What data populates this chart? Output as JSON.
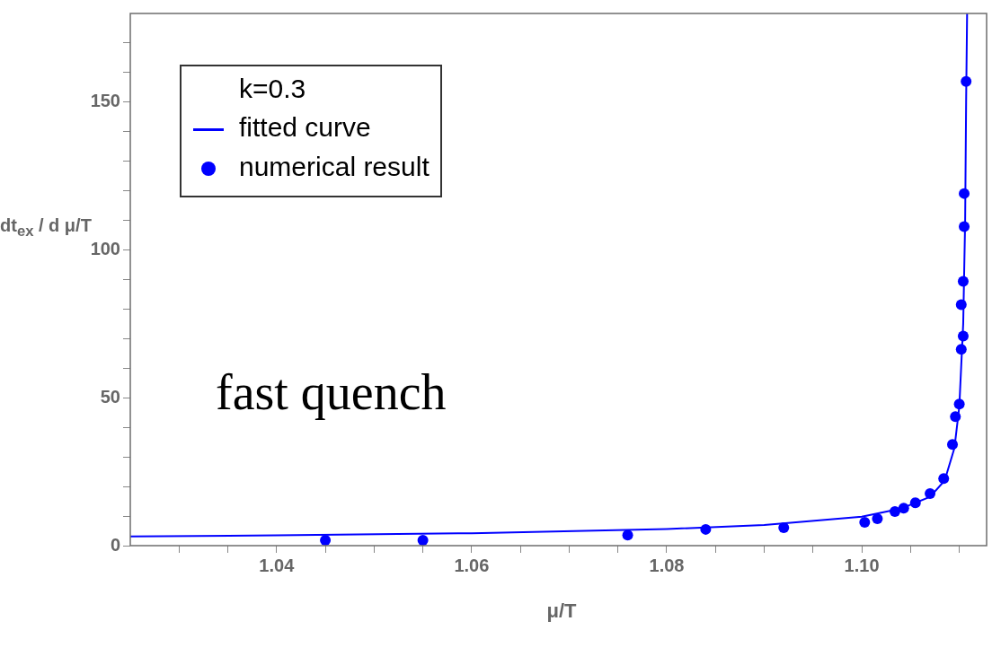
{
  "chart_data": {
    "type": "scatter",
    "xlabel": "μ/T",
    "ylabel": "dt$_{ex}$ / d μ/T",
    "legend_title": "k=0.3",
    "legend": "top left",
    "grid": false,
    "annotations": [
      "fast quench"
    ],
    "xlim": [
      1.025,
      1.1128
    ],
    "ylim": [
      0,
      180
    ],
    "xticks": [
      {
        "value": 1.03,
        "label": null
      },
      {
        "value": 1.035,
        "label": null
      },
      1.04,
      {
        "value": 1.045,
        "label": null
      },
      {
        "value": 1.05,
        "label": null
      },
      {
        "value": 1.055,
        "label": null
      },
      1.06,
      {
        "value": 1.065,
        "label": null
      },
      {
        "value": 1.07,
        "label": null
      },
      {
        "value": 1.075,
        "label": null
      },
      1.08,
      {
        "value": 1.085,
        "label": null
      },
      {
        "value": 1.09,
        "label": null
      },
      {
        "value": 1.095,
        "label": null
      },
      {
        "value": 1.1,
        "label": "1.10"
      },
      {
        "value": 1.105,
        "label": null
      },
      {
        "value": 1.11,
        "label": null
      }
    ],
    "yticks": [
      0,
      {
        "value": 10,
        "label": null
      },
      {
        "value": 20,
        "label": null
      },
      {
        "value": 30,
        "label": null
      },
      {
        "value": 40,
        "label": null
      },
      50,
      {
        "value": 60,
        "label": null
      },
      {
        "value": 70,
        "label": null
      },
      {
        "value": 80,
        "label": null
      },
      {
        "value": 90,
        "label": null
      },
      100,
      {
        "value": 110,
        "label": null
      },
      {
        "value": 120,
        "label": null
      },
      {
        "value": 130,
        "label": null
      },
      {
        "value": 140,
        "label": null
      },
      150,
      {
        "value": 160,
        "label": null
      },
      {
        "value": 170,
        "label": null
      }
    ],
    "series": [
      {
        "name": "fitted curve",
        "type": "line",
        "color": "#0000ff",
        "marker": "none",
        "x": [
          1.025,
          1.04,
          1.06,
          1.08,
          1.09,
          1.1,
          1.104,
          1.107,
          1.1085,
          1.1095,
          1.11,
          1.1104,
          1.1106,
          1.1107,
          1.1108
        ],
        "values": [
          3.1,
          3.5,
          4.2,
          5.6,
          7.0,
          9.8,
          12.5,
          16.5,
          22,
          33,
          47,
          75,
          110,
          150,
          180
        ]
      },
      {
        "name": "numerical result",
        "type": "scatter",
        "color": "#0000ff",
        "marker": "circle",
        "x": [
          1.045,
          1.055,
          1.076,
          1.084,
          1.092,
          1.1003,
          1.1016,
          1.1034,
          1.1043,
          1.1055,
          1.107,
          1.1084,
          1.1093,
          1.1096,
          1.11,
          1.1102,
          1.1104,
          1.1102,
          1.1104,
          1.1105,
          1.1105,
          1.1107
        ],
        "values": [
          1.8,
          1.8,
          3.6,
          5.5,
          6.1,
          7.9,
          9.1,
          11.5,
          12.7,
          14.5,
          17.6,
          22.7,
          34.2,
          43.6,
          47.9,
          66.4,
          70.9,
          81.5,
          89.4,
          107.9,
          119.1,
          157
        ]
      }
    ]
  }
}
